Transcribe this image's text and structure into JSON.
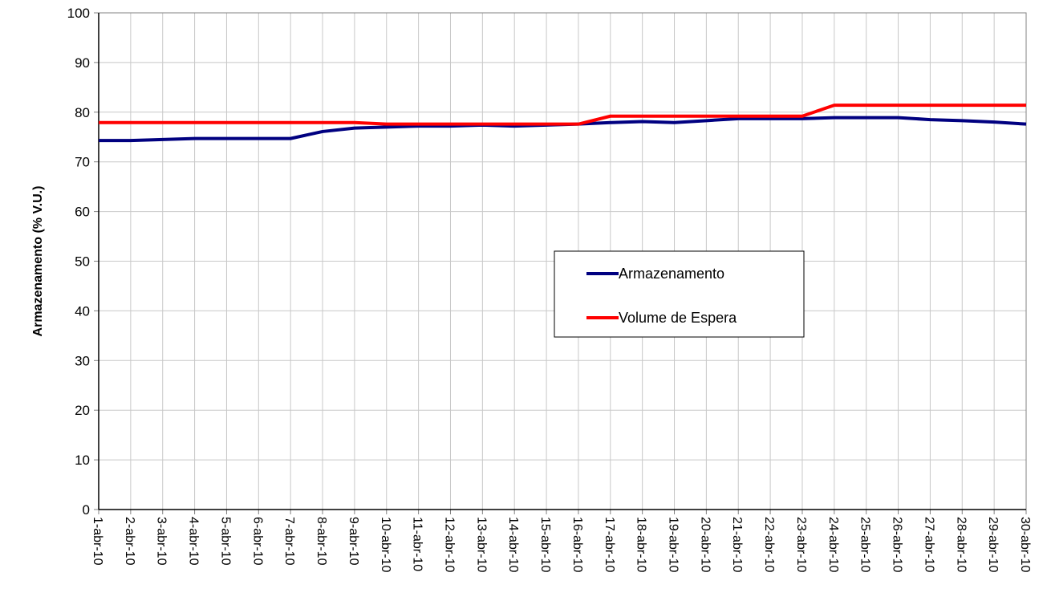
{
  "chart_data": {
    "type": "line",
    "title": "",
    "xlabel": "",
    "ylabel": "Armazenamento (% V.U.)",
    "ylim": [
      0,
      100
    ],
    "yticks": [
      0,
      10,
      20,
      30,
      40,
      50,
      60,
      70,
      80,
      90,
      100
    ],
    "grid": true,
    "legend_position": "center-right",
    "categories": [
      "1-abr-10",
      "2-abr-10",
      "3-abr-10",
      "4-abr-10",
      "5-abr-10",
      "6-abr-10",
      "7-abr-10",
      "8-abr-10",
      "9-abr-10",
      "10-abr-10",
      "11-abr-10",
      "12-abr-10",
      "13-abr-10",
      "14-abr-10",
      "15-abr-10",
      "16-abr-10",
      "17-abr-10",
      "18-abr-10",
      "19-abr-10",
      "20-abr-10",
      "21-abr-10",
      "22-abr-10",
      "23-abr-10",
      "24-abr-10",
      "25-abr-10",
      "26-abr-10",
      "27-abr-10",
      "28-abr-10",
      "29-abr-10",
      "30-abr-10"
    ],
    "series": [
      {
        "name": "Armazenamento",
        "color": "#000080",
        "values": [
          74.3,
          74.3,
          74.5,
          74.7,
          74.7,
          74.7,
          74.7,
          76.1,
          76.8,
          77.0,
          77.2,
          77.2,
          77.4,
          77.2,
          77.4,
          77.6,
          77.9,
          78.1,
          77.9,
          78.3,
          78.7,
          78.7,
          78.7,
          78.9,
          78.9,
          78.9,
          78.5,
          78.3,
          78.0,
          77.6
        ]
      },
      {
        "name": "Volume de Espera",
        "color": "#ff0000",
        "values": [
          77.9,
          77.9,
          77.9,
          77.9,
          77.9,
          77.9,
          77.9,
          77.9,
          77.9,
          77.6,
          77.6,
          77.6,
          77.6,
          77.6,
          77.6,
          77.6,
          79.2,
          79.2,
          79.2,
          79.2,
          79.2,
          79.2,
          79.2,
          81.4,
          81.4,
          81.4,
          81.4,
          81.4,
          81.4,
          81.4
        ]
      }
    ]
  }
}
